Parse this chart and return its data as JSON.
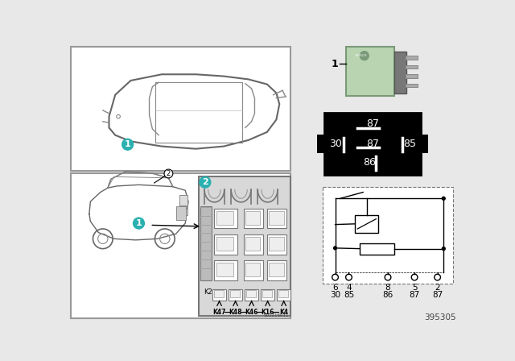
{
  "bg_color": "#e8e8e8",
  "white": "#ffffff",
  "black": "#000000",
  "gray_border": "#999999",
  "gray_line": "#666666",
  "dark_gray": "#444444",
  "light_gray": "#cccccc",
  "teal": "#2ab0b0",
  "relay_green": "#b8d4b0",
  "relay_green_dark": "#7a9a78",
  "relay_gray": "#888888",
  "relay_pin_gray": "#aaaaaa",
  "bottom_code": "395305",
  "fuse_code": "S01216011",
  "pin_labels_top": [
    "87"
  ],
  "pin_labels_mid_l": "30",
  "pin_labels_mid_c": "87",
  "pin_labels_mid_r": "85",
  "pin_labels_bot": "86",
  "schematic_pins_top": [
    "6",
    "4",
    "8",
    "5",
    "2"
  ],
  "schematic_pins_bot": [
    "30",
    "85",
    "86",
    "87",
    "87"
  ],
  "k_labels": [
    "K47",
    "K48",
    "K46",
    "K16",
    "K4"
  ]
}
